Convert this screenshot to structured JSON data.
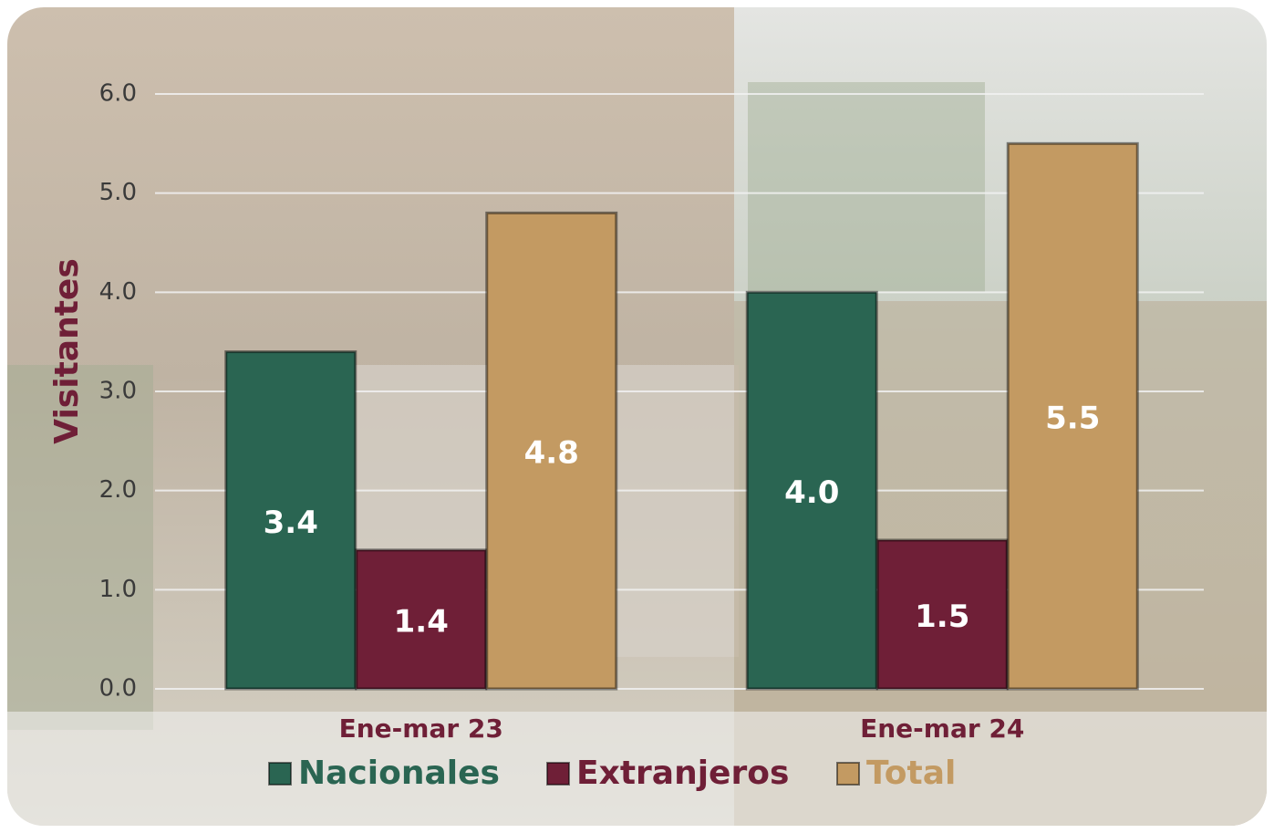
{
  "chart_data": {
    "type": "bar",
    "ylabel": "Visitantes",
    "categories": [
      "Ene-mar 23",
      "Ene-mar 24"
    ],
    "series": [
      {
        "name": "Nacionales",
        "color": "#2a6552",
        "values": [
          3.4,
          4.0
        ],
        "value_labels": [
          "3.4",
          "4.0"
        ]
      },
      {
        "name": "Extranjeros",
        "color": "#6f1f37",
        "values": [
          1.4,
          1.5
        ],
        "value_labels": [
          "1.4",
          "1.5"
        ]
      },
      {
        "name": "Total",
        "color": "#c39a62",
        "values": [
          4.8,
          5.5
        ],
        "value_labels": [
          "4.8",
          "5.5"
        ]
      }
    ],
    "ylim": [
      0,
      6
    ],
    "yticks": [
      {
        "value": 0,
        "label": "0.0"
      },
      {
        "value": 1,
        "label": "1.0"
      },
      {
        "value": 2,
        "label": "2.0"
      },
      {
        "value": 3,
        "label": "3.0"
      },
      {
        "value": 4,
        "label": "4.0"
      },
      {
        "value": 5,
        "label": "5.0"
      },
      {
        "value": 6,
        "label": "6.0"
      }
    ],
    "grid": true
  }
}
